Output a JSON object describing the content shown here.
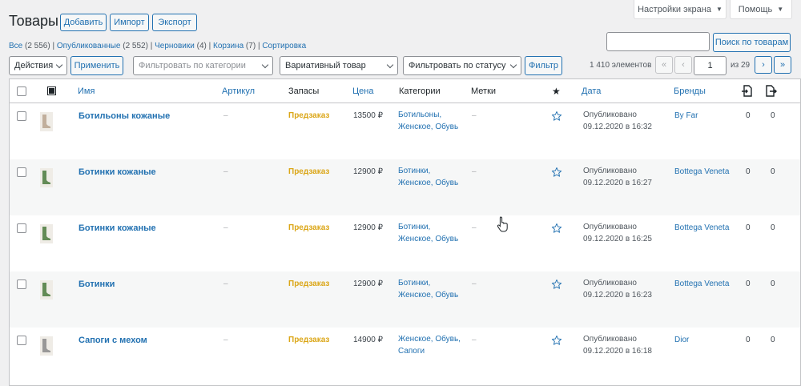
{
  "header": {
    "title": "Товары",
    "buttons": {
      "add": "Добавить",
      "import": "Импорт",
      "export": "Экспорт"
    },
    "screen_options": "Настройки экрана",
    "help": "Помощь"
  },
  "search": {
    "value": "",
    "button": "Поиск по товарам"
  },
  "views": [
    {
      "label": "Все",
      "count": "(2 556)"
    },
    {
      "label": "Опубликованные",
      "count": "(2 552)"
    },
    {
      "label": "Черновики",
      "count": "(4)"
    },
    {
      "label": "Корзина",
      "count": "(7)"
    },
    {
      "label": "Сортировка",
      "count": ""
    }
  ],
  "tablenav": {
    "bulk_action": "Действия",
    "apply": "Применить",
    "category_placeholder": "Фильтровать по категории",
    "product_type": "Вариативный товар",
    "stock_status_placeholder": "Фильтровать по статусу то",
    "filter": "Фильтр",
    "items_count": "1 410 элементов",
    "pager": {
      "first": "«",
      "prev": "‹",
      "current": "1",
      "of": "из 29",
      "next": "›",
      "last": "»"
    }
  },
  "columns": {
    "name": "Имя",
    "sku": "Артикул",
    "stock": "Запасы",
    "price": "Цена",
    "categories": "Категории",
    "tags": "Метки",
    "date": "Дата",
    "brands": "Бренды"
  },
  "rows": [
    {
      "name": "Ботильоны кожаные",
      "sku": "–",
      "stock": "Предзаказ",
      "price": "13500 ₽",
      "cat1": "Ботильоны,",
      "cat2": "Женское, Обувь",
      "tags": "–",
      "date1": "Опубликовано",
      "date2": "09.12.2020 в 16:32",
      "brand": "By Far",
      "c1": "0",
      "c2": "0"
    },
    {
      "name": "Ботинки кожаные",
      "sku": "–",
      "stock": "Предзаказ",
      "price": "12900 ₽",
      "cat1": "Ботинки,",
      "cat2": "Женское, Обувь",
      "tags": "–",
      "date1": "Опубликовано",
      "date2": "09.12.2020 в 16:27",
      "brand": "Bottega Veneta",
      "c1": "0",
      "c2": "0"
    },
    {
      "name": "Ботинки кожаные",
      "sku": "–",
      "stock": "Предзаказ",
      "price": "12900 ₽",
      "cat1": "Ботинки,",
      "cat2": "Женское, Обувь",
      "tags": "–",
      "date1": "Опубликовано",
      "date2": "09.12.2020 в 16:25",
      "brand": "Bottega Veneta",
      "c1": "0",
      "c2": "0"
    },
    {
      "name": "Ботинки",
      "sku": "–",
      "stock": "Предзаказ",
      "price": "12900 ₽",
      "cat1": "Ботинки,",
      "cat2": "Женское, Обувь",
      "tags": "–",
      "date1": "Опубликовано",
      "date2": "09.12.2020 в 16:23",
      "brand": "Bottega Veneta",
      "c1": "0",
      "c2": "0"
    },
    {
      "name": "Сапоги с мехом",
      "sku": "–",
      "stock": "Предзаказ",
      "price": "14900 ₽",
      "cat1": "Женское, Обувь,",
      "cat2": "Сапоги",
      "tags": "–",
      "date1": "Опубликовано",
      "date2": "09.12.2020 в 16:18",
      "brand": "Dior",
      "c1": "0",
      "c2": "0"
    }
  ],
  "thumb_colors": [
    "#b8a48e",
    "#4a7a3c",
    "#4a7a3c",
    "#4a7a3c",
    "#8a8a8a"
  ],
  "colors": {
    "link": "#2271b1",
    "stock_preorder": "#dba617"
  },
  "icons": {
    "image_column": "image-icon",
    "featured": "star-icon",
    "col_export": "export-icon",
    "col_import": "import-icon",
    "cursor": "hand-pointer-icon"
  }
}
